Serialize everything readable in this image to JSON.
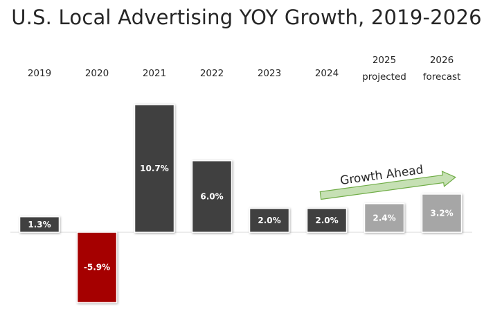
{
  "chart_data": {
    "type": "bar",
    "title": "U.S. Local Advertising YOY Growth, 2019-2026",
    "xlabel": "",
    "ylabel": "",
    "ylim": [
      -6,
      11
    ],
    "grid": false,
    "legend": "none",
    "categories": [
      [
        "2019"
      ],
      [
        "2020"
      ],
      [
        "2021"
      ],
      [
        "2022"
      ],
      [
        "2023"
      ],
      [
        "2024"
      ],
      [
        "2025",
        "projected"
      ],
      [
        "2026",
        "forecast"
      ]
    ],
    "values": [
      1.3,
      -5.9,
      10.7,
      6.0,
      2.0,
      2.0,
      2.4,
      3.2
    ],
    "data_labels": [
      "1.3%",
      "-5.9%",
      "10.7%",
      "6.0%",
      "2.0%",
      "2.0%",
      "2.4%",
      "3.2%"
    ],
    "bar_colors": [
      "#3f3f3f",
      "#a50000",
      "#3f3f3f",
      "#3f3f3f",
      "#3f3f3f",
      "#3f3f3f",
      "#a6a6a6",
      "#a6a6a6"
    ],
    "annotation": {
      "text": "Growth Ahead",
      "arrow_fill": "#c6e0b4",
      "arrow_stroke": "#70ad47"
    }
  }
}
